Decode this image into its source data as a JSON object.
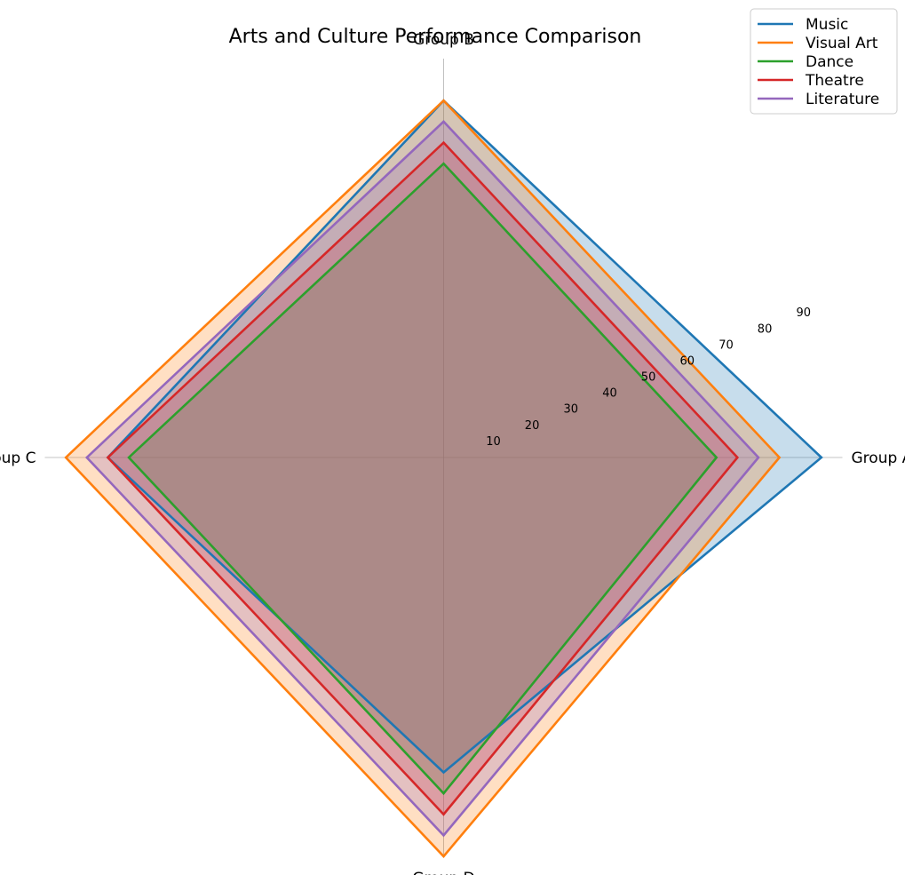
{
  "chart_data": {
    "type": "radar",
    "title": "Arts and Culture Performance Comparison",
    "categories": [
      "Group A",
      "Group B",
      "Group C",
      "Group D"
    ],
    "radial_ticks": [
      "10",
      "20",
      "30",
      "40",
      "50",
      "60",
      "70",
      "80",
      "90"
    ],
    "rlim": [
      0,
      95
    ],
    "grid": true,
    "legend_position": "top-right",
    "series": [
      {
        "name": "Music",
        "color": "#1f77b4",
        "values": [
          90,
          85,
          80,
          75
        ]
      },
      {
        "name": "Visual Art",
        "color": "#ff7f0e",
        "values": [
          80,
          85,
          90,
          95
        ]
      },
      {
        "name": "Dance",
        "color": "#2ca02c",
        "values": [
          65,
          70,
          75,
          80
        ]
      },
      {
        "name": "Theatre",
        "color": "#d62728",
        "values": [
          70,
          75,
          80,
          85
        ]
      },
      {
        "name": "Literature",
        "color": "#9467bd",
        "values": [
          75,
          80,
          85,
          90
        ]
      }
    ]
  }
}
